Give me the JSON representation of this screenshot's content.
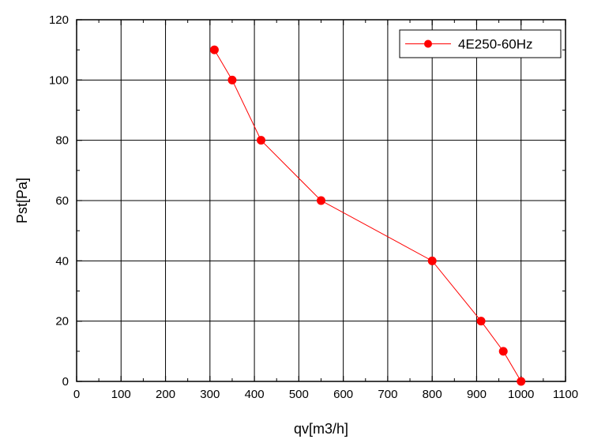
{
  "chart_data": {
    "type": "line",
    "xlabel": "qv[m3/h]",
    "ylabel": "Pst[Pa]",
    "xlim": [
      0,
      1100
    ],
    "ylim": [
      0,
      120
    ],
    "x_ticks": [
      0,
      100,
      200,
      300,
      400,
      500,
      600,
      700,
      800,
      900,
      1000,
      1100
    ],
    "y_ticks": [
      0,
      20,
      40,
      60,
      80,
      100,
      120
    ],
    "grid": true,
    "legend_position": "top-right",
    "series": [
      {
        "name": "4E250-60Hz",
        "color": "#ff0000",
        "marker": "circle",
        "x": [
          310,
          350,
          415,
          550,
          800,
          910,
          960,
          1000
        ],
        "y": [
          110,
          100,
          80,
          60,
          40,
          20,
          10,
          0
        ]
      }
    ]
  }
}
